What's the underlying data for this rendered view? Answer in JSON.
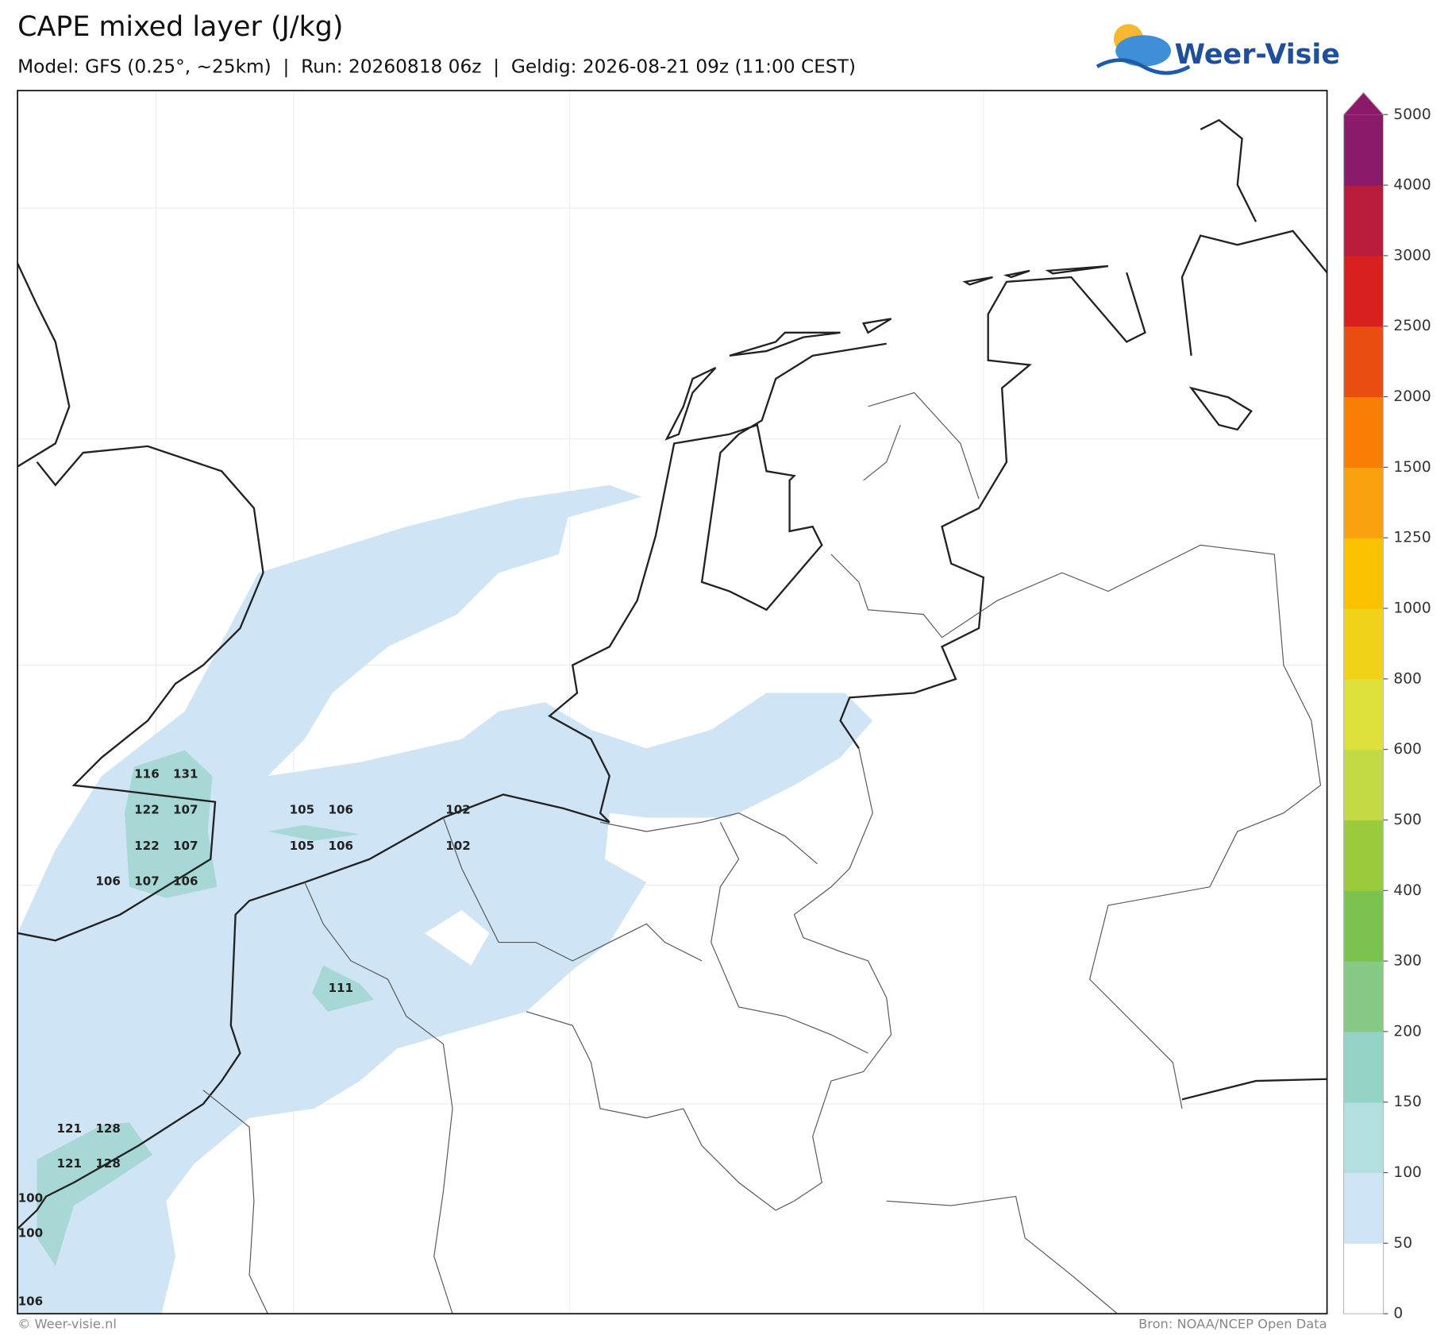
{
  "header": {
    "title": "CAPE mixed layer (J/kg)",
    "subtitle": "Model: GFS (0.25°, ~25km)  |  Run: 20260818 06z  |  Geldig: 2026-08-21 09z (11:00 CEST)",
    "logo": "Weer-Visie"
  },
  "colorbar": {
    "ticks": [
      0,
      50,
      100,
      150,
      200,
      300,
      400,
      500,
      600,
      800,
      1000,
      1250,
      1500,
      2000,
      2500,
      3000,
      4000,
      5000
    ],
    "colors": [
      "#ffffff",
      "#cfe5f5",
      "#b3dfe0",
      "#95d3c7",
      "#88c988",
      "#7bc24f",
      "#9acb3c",
      "#c3da44",
      "#dfe03a",
      "#f0d318",
      "#fbc202",
      "#fba10f",
      "#f87e06",
      "#e84e10",
      "#d92020",
      "#b81c3a",
      "#8c1a6a"
    ]
  },
  "map": {
    "labels": [
      116,
      131,
      122,
      107,
      122,
      107,
      106,
      107,
      106,
      105,
      106,
      105,
      106,
      102,
      102,
      111,
      121,
      128,
      121,
      128,
      100,
      100,
      106
    ]
  },
  "footer": {
    "left": "© Weer-visie.nl",
    "right": "Bron: NOAA/NCEP Open Data"
  }
}
